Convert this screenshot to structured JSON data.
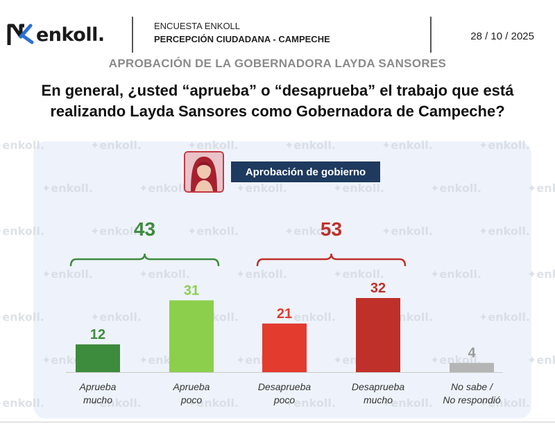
{
  "header": {
    "logo_text": "enkoll.",
    "survey_label": "ENCUESTA ENKOLL",
    "survey_subject": "PERCEPCIÓN CIUDADANA - CAMPECHE",
    "date": "28 / 10 / 2025"
  },
  "subtitle": "APROBACIÓN DE LA GOBERNADORA LAYDA SANSORES",
  "question_line1": "En general, ¿usted “aprueba” o “desaprueba” el trabajo que está",
  "question_line2": "realizando Layda Sansores como Gobernadora de Campeche?",
  "legend_label": "Aprobación de gobierno",
  "watermark_text": "enkoll.",
  "colors": {
    "approve_strong": "#3d8b3d",
    "approve_weak": "#8ccf4d",
    "disapprove_weak": "#e33b2e",
    "disapprove_strong": "#c0302a",
    "no_answer": "#b5b5b5",
    "approve_bracket": "#3d8b3d",
    "disapprove_bracket": "#c0302a",
    "legend_bg": "#1f3a5f"
  },
  "chart_data": {
    "type": "bar",
    "categories": [
      [
        "Aprueba",
        "mucho"
      ],
      [
        "Aprueba",
        "poco"
      ],
      [
        "Desaprueba",
        "poco"
      ],
      [
        "Desaprueba",
        "mucho"
      ],
      [
        "No sabe /",
        "No respondió"
      ]
    ],
    "values": [
      12,
      31,
      21,
      32,
      4
    ],
    "bar_colors": [
      "#3d8b3d",
      "#8ccf4d",
      "#e33b2e",
      "#c0302a",
      "#b5b5b5"
    ],
    "label_colors": [
      "#3d8b3d",
      "#8ccf4d",
      "#e33b2e",
      "#c0302a",
      "#9a9a9a"
    ],
    "groups": [
      {
        "total": "43",
        "from": 0,
        "to": 1,
        "color": "#3d8b3d"
      },
      {
        "total": "53",
        "from": 2,
        "to": 3,
        "color": "#c0302a"
      }
    ],
    "ylim": [
      0,
      32
    ],
    "grid": false,
    "legend": "top-center"
  }
}
